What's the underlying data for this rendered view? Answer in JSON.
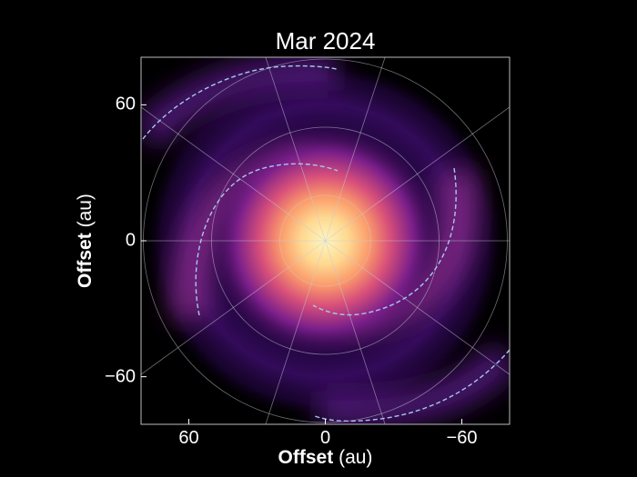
{
  "chart_data": {
    "type": "image",
    "title": "Mar 2024",
    "xlabel_bold": "Offset",
    "xlabel_unit": "(au)",
    "ylabel_bold": "Offset",
    "ylabel_unit": "(au)",
    "xlim": [
      81,
      -81
    ],
    "ylim": [
      -81,
      81
    ],
    "xticks": [
      60,
      0,
      -60
    ],
    "xtick_labels": [
      "60",
      "0",
      "−60"
    ],
    "yticks": [
      60,
      0,
      -60
    ],
    "ytick_labels": [
      "60",
      "0",
      "−60"
    ],
    "colormap": "magma",
    "polar_grid": {
      "ring_radii_au": [
        20,
        50,
        80
      ],
      "spoke_angles_deg": [
        0,
        36,
        72,
        108,
        144
      ],
      "color": "#c8c8d8"
    },
    "spiral_overlay": {
      "style": "dashed",
      "color": "#a8c8f0",
      "arm_count": 4
    },
    "background": "#000000"
  }
}
